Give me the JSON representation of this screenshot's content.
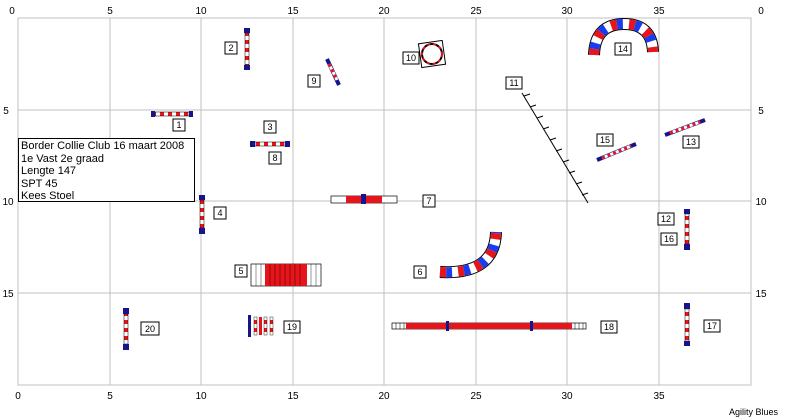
{
  "info": {
    "lines": [
      "Border Collie Club 16 maart 2008",
      "1e Vast 2e graad",
      "Lengte 147",
      "SPT 45",
      "Kees Stoel"
    ]
  },
  "axes": {
    "x_ticks": [
      "0",
      "5",
      "10",
      "15",
      "20",
      "25",
      "30",
      "35"
    ],
    "y_ticks": [
      "0",
      "5",
      "10",
      "15"
    ]
  },
  "obstacles": [
    {
      "num": "1",
      "type": "jump"
    },
    {
      "num": "2",
      "type": "jump"
    },
    {
      "num": "3",
      "type": "jump"
    },
    {
      "num": "4",
      "type": "jump"
    },
    {
      "num": "5",
      "type": "tunnel"
    },
    {
      "num": "6",
      "type": "curved-tunnel"
    },
    {
      "num": "7",
      "type": "long-jump"
    },
    {
      "num": "8",
      "type": "jump"
    },
    {
      "num": "9",
      "type": "jump"
    },
    {
      "num": "10",
      "type": "tire"
    },
    {
      "num": "11",
      "type": "weave-poles"
    },
    {
      "num": "12",
      "type": "jump"
    },
    {
      "num": "13",
      "type": "jump"
    },
    {
      "num": "14",
      "type": "curved-tunnel"
    },
    {
      "num": "15",
      "type": "jump"
    },
    {
      "num": "16",
      "type": "jump"
    },
    {
      "num": "17",
      "type": "jump"
    },
    {
      "num": "18",
      "type": "dog-walk"
    },
    {
      "num": "19",
      "type": "jump"
    },
    {
      "num": "20",
      "type": "jump"
    }
  ],
  "brand": "Agility Blues",
  "colors": {
    "red": "#e8141b",
    "blue": "#14148c",
    "grid": "#c0c0c0"
  }
}
